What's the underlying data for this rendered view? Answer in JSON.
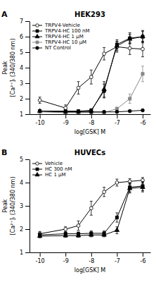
{
  "chart_data": [
    {
      "type": "line",
      "title": "HEK293",
      "annotations": [
        "A"
      ],
      "x_label": "log[GSK] M",
      "y_label": "Peak\n[Ca²⁺]ᵢ (340/380 nm)",
      "xlim": [
        -10.4,
        -5.7
      ],
      "ylim": [
        1,
        7
      ],
      "xticks": [
        -10,
        -9,
        -8,
        -7,
        -6
      ],
      "yticks": [
        1,
        2,
        3,
        4,
        5,
        6,
        7
      ],
      "grid": false,
      "legend": "upper left",
      "x": [
        -10,
        -9,
        -8.5,
        -8,
        -7.5,
        -7,
        -6.5,
        -6
      ],
      "series": [
        {
          "name": "TRPV4-Vehicle",
          "color": "black",
          "marker": "circle-open",
          "line_style": "solid",
          "values": [
            1.9,
            1.4,
            2.7,
            3.4,
            4.9,
            5.35,
            5.25,
            5.2
          ],
          "errors": [
            0.2,
            0.2,
            0.4,
            0.45,
            0.4,
            0.35,
            0.4,
            0.5
          ]
        },
        {
          "name": "TRPV4-HC 100 nM",
          "color": "black",
          "marker": "square",
          "line_style": "solid",
          "values": [
            1.2,
            1.2,
            1.2,
            1.25,
            2.5,
            5.5,
            5.9,
            6.0
          ],
          "errors": [
            0.05,
            0.05,
            0.05,
            0.1,
            0.45,
            0.3,
            0.35,
            0.4
          ]
        },
        {
          "name": "TRPV4-HC 1 μM",
          "color": "black",
          "marker": "triangle",
          "line_style": "solid",
          "values": [
            1.2,
            1.15,
            1.15,
            1.2,
            2.6,
            5.4,
            5.85,
            6.0
          ],
          "errors": [
            0.05,
            0.05,
            0.05,
            0.1,
            0.5,
            0.3,
            0.3,
            0.35
          ]
        },
        {
          "name": "TRPV4-HC 10 μM",
          "color": "#888888",
          "marker": "square",
          "line_style": "solid",
          "values": [
            1.15,
            1.1,
            1.1,
            1.1,
            1.1,
            1.35,
            2.0,
            3.6
          ],
          "errors": [
            0.05,
            0.05,
            0.05,
            0.05,
            0.05,
            0.1,
            0.3,
            0.5
          ]
        },
        {
          "name": "NT Control",
          "color": "black",
          "marker": "circle",
          "line_style": "solid",
          "values": [
            1.2,
            1.15,
            1.15,
            1.15,
            1.15,
            1.15,
            1.2,
            1.25
          ],
          "errors": [
            0.04,
            0.04,
            0.04,
            0.04,
            0.04,
            0.04,
            0.04,
            0.05
          ]
        }
      ]
    },
    {
      "type": "line",
      "title": "HUVECs",
      "annotations": [
        "B"
      ],
      "x_label": "log[GSK] M",
      "y_label": "Peak\n[Ca²⁺]ᵢ (340/380 nm)",
      "xlim": [
        -10.4,
        -5.7
      ],
      "ylim": [
        1,
        5
      ],
      "xticks": [
        -10,
        -9,
        -8,
        -7,
        -6
      ],
      "yticks": [
        1,
        2,
        3,
        4,
        5
      ],
      "grid": false,
      "legend": "upper left",
      "x": [
        -10,
        -9,
        -8.5,
        -8,
        -7.5,
        -7,
        -6.5,
        -6
      ],
      "series": [
        {
          "name": "Vehicle",
          "color": "black",
          "marker": "circle-open",
          "line_style": "solid",
          "values": [
            1.8,
            2.0,
            2.15,
            2.9,
            3.6,
            4.0,
            4.05,
            4.1
          ],
          "errors": [
            0.1,
            0.1,
            0.2,
            0.3,
            0.2,
            0.15,
            0.12,
            0.12
          ]
        },
        {
          "name": "HC 300 nM",
          "color": "black",
          "marker": "square",
          "line_style": "solid",
          "values": [
            1.75,
            1.8,
            1.8,
            1.82,
            1.82,
            2.5,
            3.8,
            3.85
          ],
          "errors": [
            0.08,
            0.08,
            0.08,
            0.1,
            0.1,
            0.2,
            0.2,
            0.2
          ]
        },
        {
          "name": "HC 1 μM",
          "color": "black",
          "marker": "triangle",
          "line_style": "solid",
          "values": [
            1.7,
            1.72,
            1.72,
            1.75,
            1.75,
            1.95,
            3.75,
            3.8
          ],
          "errors": [
            0.07,
            0.07,
            0.07,
            0.08,
            0.08,
            0.15,
            0.2,
            0.2
          ]
        }
      ]
    }
  ]
}
